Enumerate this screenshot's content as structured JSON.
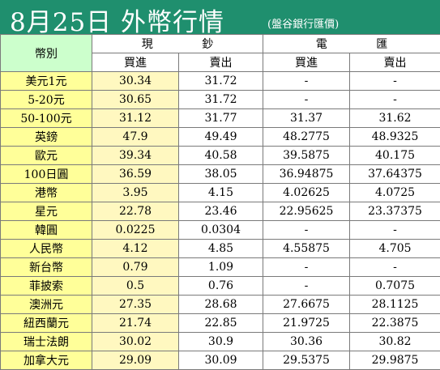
{
  "title": {
    "main": "8月25日 外幣行情",
    "sub": "(盤谷銀行匯價)"
  },
  "header": {
    "currency_label": "幣別",
    "cash_label": "現 鈔",
    "tt_label": "電 匯",
    "buy_label": "買進",
    "sell_label": "賣出"
  },
  "rows": [
    {
      "name": "美元1元",
      "cash_buy": "30.34",
      "cash_sell": "31.72",
      "tt_buy": "-",
      "tt_sell": "-"
    },
    {
      "name": "5-20元",
      "cash_buy": "30.65",
      "cash_sell": "31.72",
      "tt_buy": "-",
      "tt_sell": "-"
    },
    {
      "name": "50-100元",
      "cash_buy": "31.12",
      "cash_sell": "31.77",
      "tt_buy": "31.37",
      "tt_sell": "31.62"
    },
    {
      "name": "英鎊",
      "cash_buy": "47.9",
      "cash_sell": "49.49",
      "tt_buy": "48.2775",
      "tt_sell": "48.9325"
    },
    {
      "name": "歐元",
      "cash_buy": "39.34",
      "cash_sell": "40.58",
      "tt_buy": "39.5875",
      "tt_sell": "40.175"
    },
    {
      "name": "100日圓",
      "cash_buy": "36.59",
      "cash_sell": "38.05",
      "tt_buy": "36.94875",
      "tt_sell": "37.64375"
    },
    {
      "name": "港幣",
      "cash_buy": "3.95",
      "cash_sell": "4.15",
      "tt_buy": "4.02625",
      "tt_sell": "4.0725"
    },
    {
      "name": "星元",
      "cash_buy": "22.78",
      "cash_sell": "23.46",
      "tt_buy": "22.95625",
      "tt_sell": "23.37375"
    },
    {
      "name": "韓圓",
      "cash_buy": "0.0225",
      "cash_sell": "0.0304",
      "tt_buy": "-",
      "tt_sell": "-"
    },
    {
      "name": "人民幣",
      "cash_buy": "4.12",
      "cash_sell": "4.85",
      "tt_buy": "4.55875",
      "tt_sell": "4.705"
    },
    {
      "name": "新台幣",
      "cash_buy": "0.79",
      "cash_sell": "1.09",
      "tt_buy": "-",
      "tt_sell": "-"
    },
    {
      "name": "菲披索",
      "cash_buy": "0.5",
      "cash_sell": "0.76",
      "tt_buy": "-",
      "tt_sell": "0.7075"
    },
    {
      "name": "澳洲元",
      "cash_buy": "27.35",
      "cash_sell": "28.68",
      "tt_buy": "27.6675",
      "tt_sell": "28.1125"
    },
    {
      "name": "紐西蘭元",
      "cash_buy": "21.74",
      "cash_sell": "22.85",
      "tt_buy": "21.9725",
      "tt_sell": "22.3875"
    },
    {
      "name": "瑞士法朗",
      "cash_buy": "30.02",
      "cash_sell": "30.9",
      "tt_buy": "30.36",
      "tt_sell": "30.82"
    },
    {
      "name": "加拿大元",
      "cash_buy": "29.09",
      "cash_sell": "30.09",
      "tt_buy": "29.5375",
      "tt_sell": "29.9875"
    }
  ],
  "colors": {
    "title_bg": "#1f8f6e",
    "currency_header_bg": "#ccffcc",
    "label_bg": "#ffff99",
    "cash_buy_bg": "#fff8c0"
  }
}
